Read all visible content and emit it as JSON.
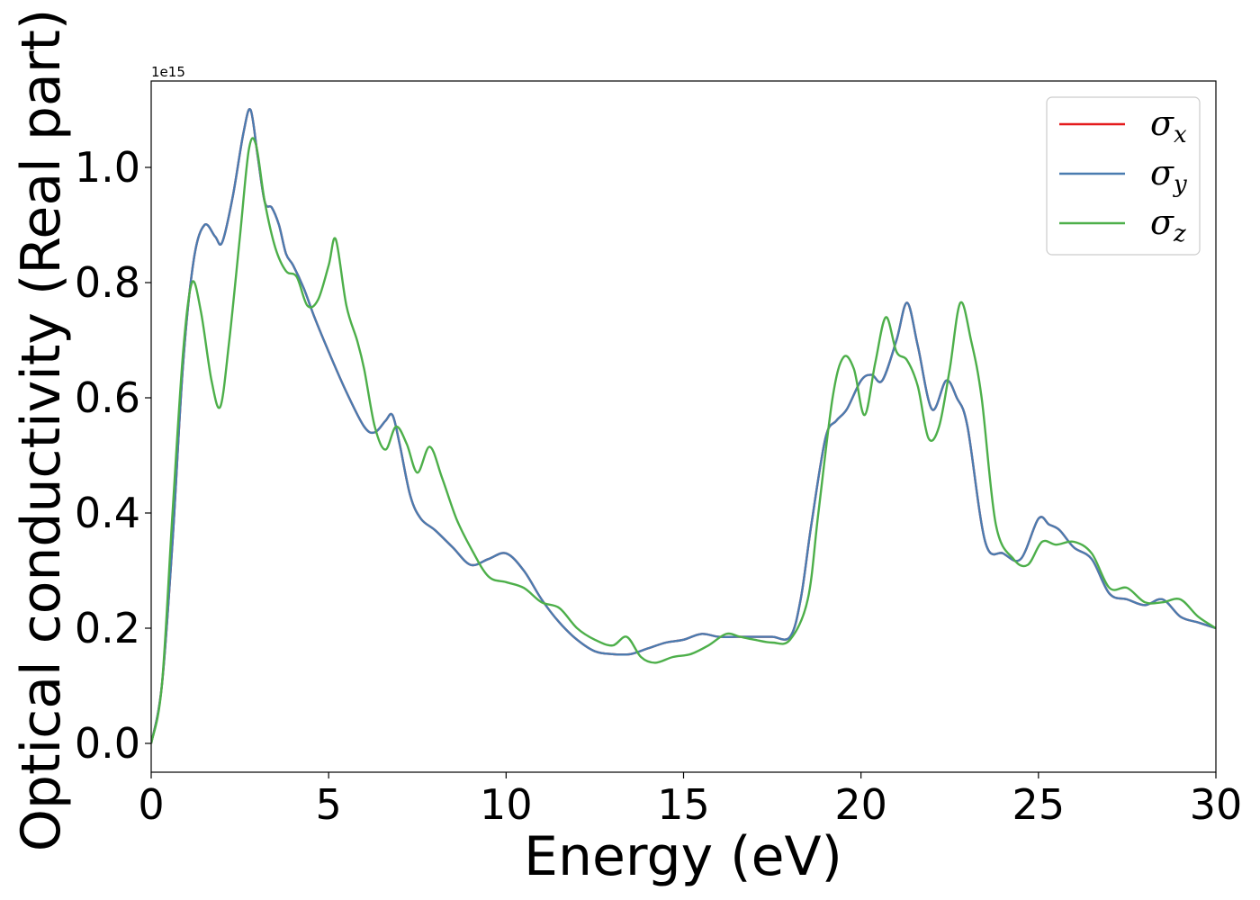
{
  "chart_data": {
    "type": "line",
    "xlabel": "Energy (eV)",
    "ylabel": "Optical conductivity (Real part)",
    "y_offset_text": "1e15",
    "xlim": [
      0,
      30
    ],
    "ylim": [
      -0.05,
      1.15
    ],
    "xticks": [
      0,
      5,
      10,
      15,
      20,
      25,
      30
    ],
    "xtick_labels": [
      "0",
      "5",
      "10",
      "15",
      "20",
      "25",
      "30"
    ],
    "yticks": [
      0.0,
      0.2,
      0.4,
      0.6,
      0.8,
      1.0
    ],
    "ytick_labels": [
      "0.0",
      "0.2",
      "0.4",
      "0.6",
      "0.8",
      "1.0"
    ],
    "legend_position": "top-right",
    "series": [
      {
        "name": "σx",
        "label_base": "σ",
        "label_sub": "x",
        "color": "#e41a1c",
        "x": [
          0,
          0.3,
          0.6,
          0.9,
          1.2,
          1.5,
          1.8,
          2.0,
          2.3,
          2.6,
          2.8,
          3.0,
          3.2,
          3.4,
          3.6,
          3.8,
          4.0,
          4.3,
          4.6,
          5.0,
          5.5,
          6.0,
          6.3,
          6.6,
          6.8,
          7.0,
          7.3,
          7.6,
          8.0,
          8.5,
          9.0,
          9.5,
          10.0,
          10.5,
          11.0,
          11.5,
          12.0,
          12.5,
          13.0,
          13.5,
          14.0,
          14.5,
          15.0,
          15.5,
          16.0,
          16.5,
          17.0,
          17.5,
          18.0,
          18.3,
          18.6,
          19.0,
          19.3,
          19.6,
          20.0,
          20.3,
          20.6,
          21.0,
          21.3,
          21.6,
          22.0,
          22.4,
          22.7,
          23.0,
          23.5,
          24.0,
          24.5,
          25.0,
          25.3,
          25.6,
          26.0,
          26.5,
          27.0,
          27.5,
          28.0,
          28.5,
          29.0,
          29.5,
          30.0
        ],
        "values": [
          0.0,
          0.1,
          0.35,
          0.66,
          0.84,
          0.9,
          0.88,
          0.87,
          0.95,
          1.06,
          1.1,
          1.02,
          0.94,
          0.93,
          0.9,
          0.85,
          0.83,
          0.79,
          0.74,
          0.68,
          0.61,
          0.55,
          0.54,
          0.56,
          0.57,
          0.52,
          0.43,
          0.39,
          0.37,
          0.34,
          0.31,
          0.32,
          0.33,
          0.3,
          0.25,
          0.21,
          0.18,
          0.16,
          0.155,
          0.155,
          0.165,
          0.175,
          0.18,
          0.19,
          0.185,
          0.185,
          0.185,
          0.185,
          0.185,
          0.25,
          0.38,
          0.53,
          0.56,
          0.58,
          0.63,
          0.64,
          0.63,
          0.7,
          0.765,
          0.69,
          0.58,
          0.63,
          0.6,
          0.55,
          0.35,
          0.33,
          0.32,
          0.39,
          0.38,
          0.37,
          0.34,
          0.32,
          0.26,
          0.25,
          0.24,
          0.25,
          0.22,
          0.21,
          0.2
        ]
      },
      {
        "name": "σy",
        "label_base": "σ",
        "label_sub": "y",
        "color": "#4a7cb0",
        "x": [
          0,
          0.3,
          0.6,
          0.9,
          1.2,
          1.5,
          1.8,
          2.0,
          2.3,
          2.6,
          2.8,
          3.0,
          3.2,
          3.4,
          3.6,
          3.8,
          4.0,
          4.3,
          4.6,
          5.0,
          5.5,
          6.0,
          6.3,
          6.6,
          6.8,
          7.0,
          7.3,
          7.6,
          8.0,
          8.5,
          9.0,
          9.5,
          10.0,
          10.5,
          11.0,
          11.5,
          12.0,
          12.5,
          13.0,
          13.5,
          14.0,
          14.5,
          15.0,
          15.5,
          16.0,
          16.5,
          17.0,
          17.5,
          18.0,
          18.3,
          18.6,
          19.0,
          19.3,
          19.6,
          20.0,
          20.3,
          20.6,
          21.0,
          21.3,
          21.6,
          22.0,
          22.4,
          22.7,
          23.0,
          23.5,
          24.0,
          24.5,
          25.0,
          25.3,
          25.6,
          26.0,
          26.5,
          27.0,
          27.5,
          28.0,
          28.5,
          29.0,
          29.5,
          30.0
        ],
        "values": [
          0.0,
          0.1,
          0.35,
          0.66,
          0.84,
          0.9,
          0.88,
          0.87,
          0.95,
          1.06,
          1.1,
          1.02,
          0.94,
          0.93,
          0.9,
          0.85,
          0.83,
          0.79,
          0.74,
          0.68,
          0.61,
          0.55,
          0.54,
          0.56,
          0.57,
          0.52,
          0.43,
          0.39,
          0.37,
          0.34,
          0.31,
          0.32,
          0.33,
          0.3,
          0.25,
          0.21,
          0.18,
          0.16,
          0.155,
          0.155,
          0.165,
          0.175,
          0.18,
          0.19,
          0.185,
          0.185,
          0.185,
          0.185,
          0.185,
          0.25,
          0.38,
          0.53,
          0.56,
          0.58,
          0.63,
          0.64,
          0.63,
          0.7,
          0.765,
          0.69,
          0.58,
          0.63,
          0.6,
          0.55,
          0.35,
          0.33,
          0.32,
          0.39,
          0.38,
          0.37,
          0.34,
          0.32,
          0.26,
          0.25,
          0.24,
          0.25,
          0.22,
          0.21,
          0.2
        ]
      },
      {
        "name": "σz",
        "label_base": "σ",
        "label_sub": "z",
        "color": "#4daf4a",
        "x": [
          0,
          0.3,
          0.6,
          0.9,
          1.15,
          1.4,
          1.7,
          1.95,
          2.2,
          2.5,
          2.75,
          2.95,
          3.2,
          3.5,
          3.8,
          4.1,
          4.4,
          4.7,
          5.0,
          5.2,
          5.5,
          5.8,
          6.0,
          6.3,
          6.6,
          6.9,
          7.2,
          7.5,
          7.85,
          8.2,
          8.6,
          9.0,
          9.5,
          10.0,
          10.5,
          11.0,
          11.5,
          12.0,
          12.5,
          13.0,
          13.4,
          13.8,
          14.2,
          14.7,
          15.2,
          15.7,
          16.2,
          16.6,
          17.0,
          17.5,
          18.0,
          18.5,
          18.8,
          19.2,
          19.5,
          19.8,
          20.1,
          20.4,
          20.7,
          21.0,
          21.3,
          21.6,
          21.9,
          22.2,
          22.5,
          22.8,
          23.1,
          23.4,
          23.8,
          24.3,
          24.7,
          25.1,
          25.5,
          26.0,
          26.5,
          27.0,
          27.5,
          28.0,
          28.5,
          29.0,
          29.5,
          30.0
        ],
        "values": [
          0.0,
          0.1,
          0.4,
          0.68,
          0.8,
          0.75,
          0.63,
          0.585,
          0.7,
          0.88,
          1.03,
          1.04,
          0.94,
          0.86,
          0.82,
          0.81,
          0.76,
          0.77,
          0.83,
          0.875,
          0.76,
          0.7,
          0.65,
          0.55,
          0.51,
          0.55,
          0.52,
          0.47,
          0.515,
          0.46,
          0.39,
          0.34,
          0.29,
          0.28,
          0.27,
          0.245,
          0.235,
          0.2,
          0.18,
          0.17,
          0.185,
          0.15,
          0.14,
          0.15,
          0.155,
          0.17,
          0.19,
          0.185,
          0.18,
          0.175,
          0.18,
          0.25,
          0.4,
          0.6,
          0.67,
          0.65,
          0.57,
          0.66,
          0.74,
          0.68,
          0.665,
          0.62,
          0.53,
          0.55,
          0.65,
          0.765,
          0.7,
          0.6,
          0.38,
          0.32,
          0.31,
          0.35,
          0.345,
          0.35,
          0.33,
          0.27,
          0.27,
          0.245,
          0.245,
          0.25,
          0.22,
          0.2
        ]
      }
    ]
  }
}
